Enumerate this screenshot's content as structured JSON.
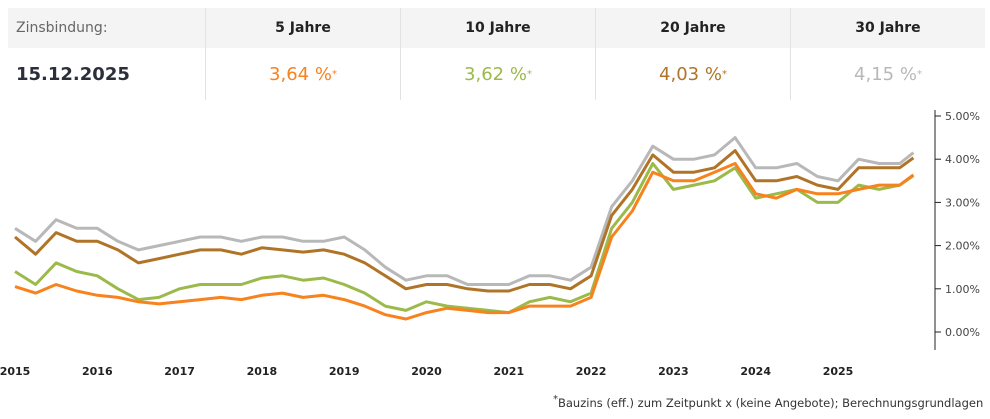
{
  "table": {
    "label": "Zinsbindung:",
    "date": "15.12.2025",
    "columns": [
      {
        "label": "5 Jahre",
        "rate": "3,64 %",
        "color": "#f7821e"
      },
      {
        "label": "10 Jahre",
        "rate": "3,62 %",
        "color": "#9bba4a"
      },
      {
        "label": "20 Jahre",
        "rate": "4,03 %",
        "color": "#b07428"
      },
      {
        "label": "30 Jahre",
        "rate": "4,15 %",
        "color": "#b8b8b8"
      }
    ],
    "asterisk": "*"
  },
  "footnote": {
    "asterisk": "*",
    "text": "Bauzins (eff.) zum Zeitpunkt x (keine Angebote); ",
    "link": "Berechnungsgrundlagen"
  },
  "chart_data": {
    "type": "line",
    "x_tick_labels": [
      "2015",
      "2016",
      "2017",
      "2018",
      "2019",
      "2020",
      "2021",
      "2022",
      "2023",
      "2024",
      "2025"
    ],
    "y_tick_labels": [
      "0.00%",
      "1.00%",
      "2.00%",
      "3.00%",
      "4.00%",
      "5.00%"
    ],
    "ylim": [
      0,
      5
    ],
    "y_axis_position": "right",
    "grid": false,
    "x": [
      "2015-01",
      "2015-04",
      "2015-07",
      "2015-10",
      "2016-01",
      "2016-04",
      "2016-07",
      "2016-10",
      "2017-01",
      "2017-04",
      "2017-07",
      "2017-10",
      "2018-01",
      "2018-04",
      "2018-07",
      "2018-10",
      "2019-01",
      "2019-04",
      "2019-07",
      "2019-10",
      "2020-01",
      "2020-04",
      "2020-07",
      "2020-10",
      "2021-01",
      "2021-04",
      "2021-07",
      "2021-10",
      "2022-01",
      "2022-04",
      "2022-07",
      "2022-10",
      "2023-01",
      "2023-04",
      "2023-07",
      "2023-10",
      "2024-01",
      "2024-04",
      "2024-07",
      "2024-10",
      "2025-01",
      "2025-04",
      "2025-07",
      "2025-10",
      "2025-12"
    ],
    "series": [
      {
        "name": "30 Jahre",
        "color": "#b8b8b8",
        "values": [
          2.4,
          2.1,
          2.6,
          2.4,
          2.4,
          2.1,
          1.9,
          2.0,
          2.1,
          2.2,
          2.2,
          2.1,
          2.2,
          2.2,
          2.1,
          2.1,
          2.2,
          1.9,
          1.5,
          1.2,
          1.3,
          1.3,
          1.1,
          1.1,
          1.1,
          1.3,
          1.3,
          1.2,
          1.5,
          2.9,
          3.5,
          4.3,
          4.0,
          4.0,
          4.1,
          4.5,
          3.8,
          3.8,
          3.9,
          3.6,
          3.5,
          4.0,
          3.9,
          3.9,
          4.15
        ]
      },
      {
        "name": "20 Jahre",
        "color": "#b07428",
        "values": [
          2.2,
          1.8,
          2.3,
          2.1,
          2.1,
          1.9,
          1.6,
          1.7,
          1.8,
          1.9,
          1.9,
          1.8,
          1.95,
          1.9,
          1.85,
          1.9,
          1.8,
          1.6,
          1.3,
          1.0,
          1.1,
          1.1,
          1.0,
          0.95,
          0.95,
          1.1,
          1.1,
          1.0,
          1.3,
          2.7,
          3.3,
          4.1,
          3.7,
          3.7,
          3.8,
          4.2,
          3.5,
          3.5,
          3.6,
          3.4,
          3.3,
          3.8,
          3.8,
          3.8,
          4.03
        ]
      },
      {
        "name": "10 Jahre",
        "color": "#9bba4a",
        "values": [
          1.4,
          1.1,
          1.6,
          1.4,
          1.3,
          1.0,
          0.75,
          0.8,
          1.0,
          1.1,
          1.1,
          1.1,
          1.25,
          1.3,
          1.2,
          1.25,
          1.1,
          0.9,
          0.6,
          0.5,
          0.7,
          0.6,
          0.55,
          0.5,
          0.45,
          0.7,
          0.8,
          0.7,
          0.9,
          2.4,
          3.0,
          3.9,
          3.3,
          3.4,
          3.5,
          3.8,
          3.1,
          3.2,
          3.3,
          3.0,
          3.0,
          3.4,
          3.3,
          3.4,
          3.62
        ]
      },
      {
        "name": "5 Jahre",
        "color": "#f7821e",
        "values": [
          1.05,
          0.9,
          1.1,
          0.95,
          0.85,
          0.8,
          0.7,
          0.65,
          0.7,
          0.75,
          0.8,
          0.75,
          0.85,
          0.9,
          0.8,
          0.85,
          0.75,
          0.6,
          0.4,
          0.3,
          0.45,
          0.55,
          0.5,
          0.45,
          0.45,
          0.6,
          0.6,
          0.6,
          0.8,
          2.2,
          2.8,
          3.7,
          3.5,
          3.5,
          3.7,
          3.9,
          3.2,
          3.1,
          3.3,
          3.2,
          3.2,
          3.3,
          3.4,
          3.4,
          3.64
        ]
      }
    ]
  }
}
